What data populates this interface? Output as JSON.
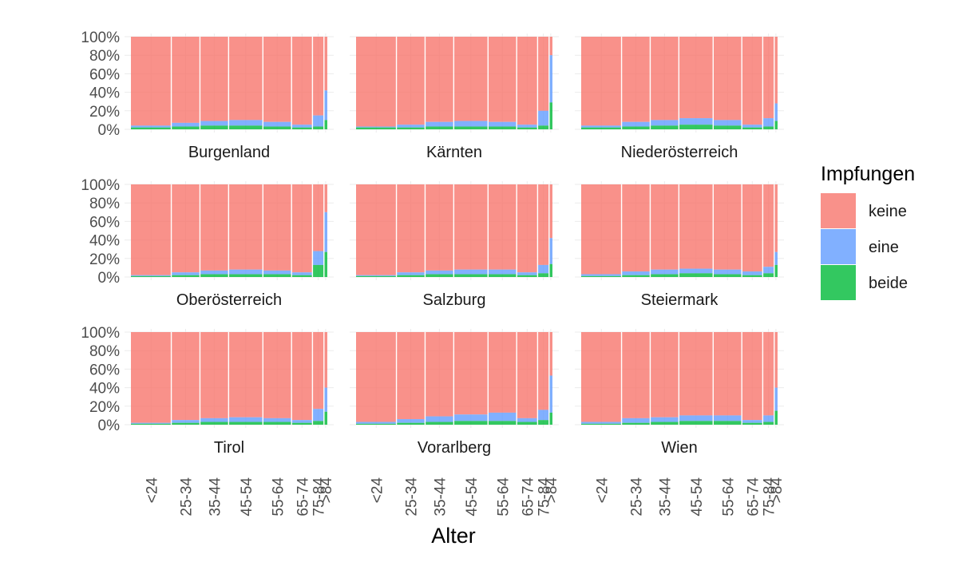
{
  "chart_data": {
    "type": "bar",
    "subtype": "stacked-proportion-variable-width",
    "xlabel": "Alter",
    "ylabel": "",
    "ylim": [
      0,
      1
    ],
    "y_ticks": [
      "0%",
      "20%",
      "40%",
      "60%",
      "80%",
      "100%"
    ],
    "categories": [
      "<24",
      "25-34",
      "35-44",
      "45-54",
      "55-64",
      "65-74",
      "75-84",
      ">84"
    ],
    "category_widths": [
      19.3,
      13.7,
      13.7,
      16.4,
      13.7,
      10.0,
      5.5,
      1.6
    ],
    "legend": {
      "title": "Impfungen",
      "position": "right",
      "entries": [
        {
          "name": "keine",
          "color": "#F8766D"
        },
        {
          "name": "eine",
          "color": "#619CFF"
        },
        {
          "name": "beide",
          "color": "#00BA38"
        }
      ]
    },
    "panels": [
      {
        "name": "Burgenland",
        "beide": [
          0.02,
          0.03,
          0.04,
          0.04,
          0.03,
          0.02,
          0.03,
          0.1
        ],
        "eine": [
          0.02,
          0.04,
          0.05,
          0.06,
          0.05,
          0.03,
          0.12,
          0.32
        ]
      },
      {
        "name": "Kärnten",
        "beide": [
          0.02,
          0.02,
          0.03,
          0.03,
          0.03,
          0.02,
          0.04,
          0.29
        ],
        "eine": [
          0.01,
          0.03,
          0.05,
          0.06,
          0.05,
          0.03,
          0.16,
          0.51
        ]
      },
      {
        "name": "Niederösterreich",
        "beide": [
          0.02,
          0.03,
          0.04,
          0.05,
          0.04,
          0.02,
          0.03,
          0.09
        ],
        "eine": [
          0.02,
          0.05,
          0.06,
          0.07,
          0.06,
          0.03,
          0.09,
          0.19
        ]
      },
      {
        "name": "Oberösterreich",
        "beide": [
          0.01,
          0.02,
          0.03,
          0.03,
          0.03,
          0.02,
          0.13,
          0.27
        ],
        "eine": [
          0.01,
          0.03,
          0.04,
          0.05,
          0.04,
          0.03,
          0.15,
          0.43
        ]
      },
      {
        "name": "Salzburg",
        "beide": [
          0.01,
          0.02,
          0.03,
          0.03,
          0.03,
          0.02,
          0.04,
          0.14
        ],
        "eine": [
          0.01,
          0.03,
          0.04,
          0.05,
          0.05,
          0.03,
          0.09,
          0.28
        ]
      },
      {
        "name": "Steiermark",
        "beide": [
          0.01,
          0.02,
          0.03,
          0.04,
          0.03,
          0.02,
          0.04,
          0.13
        ],
        "eine": [
          0.02,
          0.04,
          0.05,
          0.05,
          0.05,
          0.04,
          0.07,
          0.14
        ]
      },
      {
        "name": "Tirol",
        "beide": [
          0.01,
          0.02,
          0.03,
          0.03,
          0.03,
          0.02,
          0.04,
          0.14
        ],
        "eine": [
          0.01,
          0.03,
          0.04,
          0.05,
          0.04,
          0.03,
          0.13,
          0.26
        ]
      },
      {
        "name": "Vorarlberg",
        "beide": [
          0.01,
          0.02,
          0.03,
          0.04,
          0.04,
          0.03,
          0.05,
          0.13
        ],
        "eine": [
          0.02,
          0.04,
          0.06,
          0.07,
          0.09,
          0.04,
          0.11,
          0.4
        ]
      },
      {
        "name": "Wien",
        "beide": [
          0.01,
          0.02,
          0.03,
          0.04,
          0.04,
          0.02,
          0.03,
          0.15
        ],
        "eine": [
          0.02,
          0.05,
          0.05,
          0.06,
          0.06,
          0.03,
          0.07,
          0.25
        ]
      }
    ]
  }
}
